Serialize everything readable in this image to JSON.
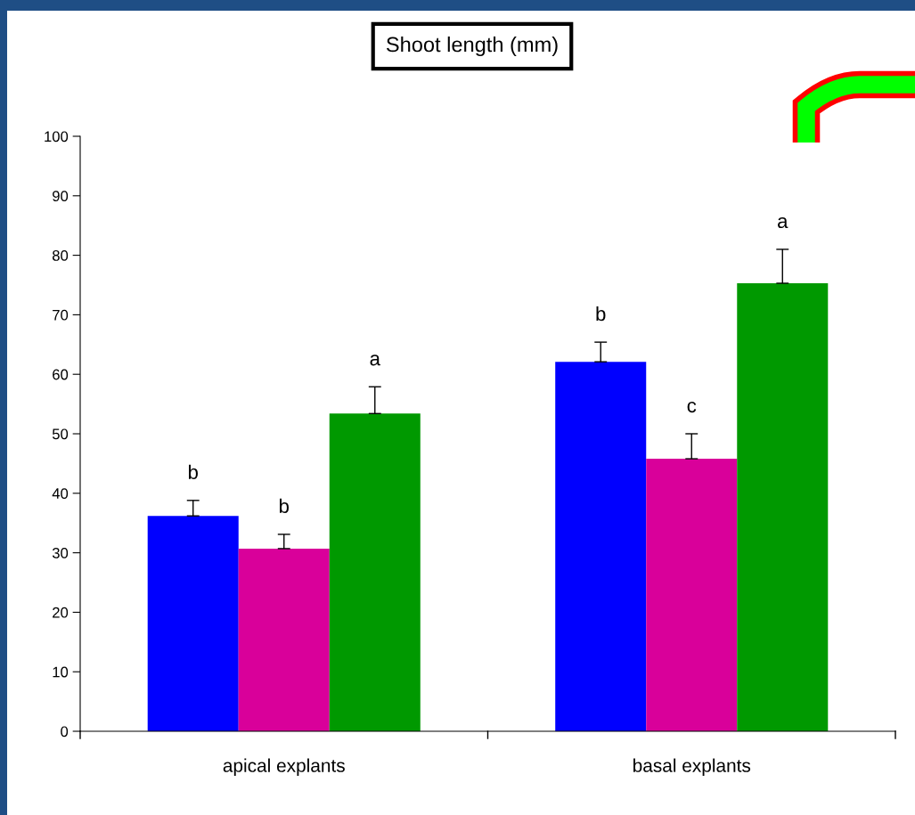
{
  "chart_data": {
    "type": "bar",
    "title": "Shoot length (mm)",
    "categories": [
      "apical explants",
      "basal explants"
    ],
    "series": [
      {
        "color": "#0000ff",
        "values": [
          36.2,
          62.1
        ],
        "errors": [
          [
            36.2,
            38.8
          ],
          [
            62.1,
            65.4
          ]
        ],
        "value_labels": [
          "b",
          "b"
        ]
      },
      {
        "color": "#d9009a",
        "values": [
          30.7,
          45.8
        ],
        "errors": [
          [
            30.7,
            33.1
          ],
          [
            45.8,
            50.0
          ]
        ],
        "value_labels": [
          "b",
          "c"
        ]
      },
      {
        "color": "#009900",
        "values": [
          53.4,
          75.3
        ],
        "errors": [
          [
            53.4,
            57.9
          ],
          [
            75.3,
            81.0
          ]
        ],
        "value_labels": [
          "a",
          "a"
        ]
      }
    ],
    "ylim": [
      0,
      100
    ],
    "yticks": [
      0,
      10,
      20,
      30,
      40,
      50,
      60,
      70,
      80,
      90,
      100
    ],
    "grid": false,
    "legend": false
  }
}
